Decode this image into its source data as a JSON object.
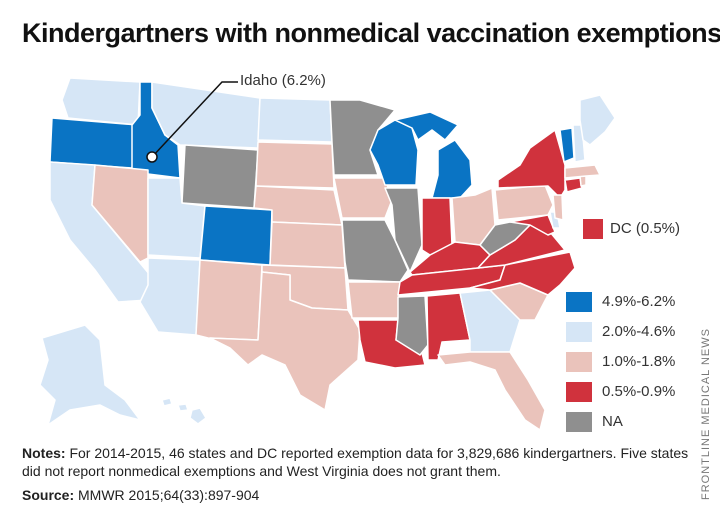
{
  "title": "Kindergartners with nonmedical vaccination exemptions",
  "callout": {
    "label": "Idaho (6.2%)"
  },
  "dc": {
    "label": "DC (0.5%)",
    "color": "#d0323d"
  },
  "legend": [
    {
      "label": "4.9%-6.2%",
      "color": "#0a74c4"
    },
    {
      "label": "2.0%-4.6%",
      "color": "#d6e6f6"
    },
    {
      "label": "1.0%-1.8%",
      "color": "#eac3bb"
    },
    {
      "label": "0.5%-0.9%",
      "color": "#d0323d"
    },
    {
      "label": "NA",
      "color": "#8f8f8f"
    }
  ],
  "notes": {
    "heading": "Notes:",
    "text": "For 2014-2015, 46 states and DC reported exemption data for 3,829,686 kindergartners. Five states did not report nonmedical exemptions and West Virginia does not grant them."
  },
  "source": {
    "heading": "Source:",
    "text": "MMWR 2015;64(33):897-904"
  },
  "credit": "FRONTLINE MEDICAL NEWS"
}
